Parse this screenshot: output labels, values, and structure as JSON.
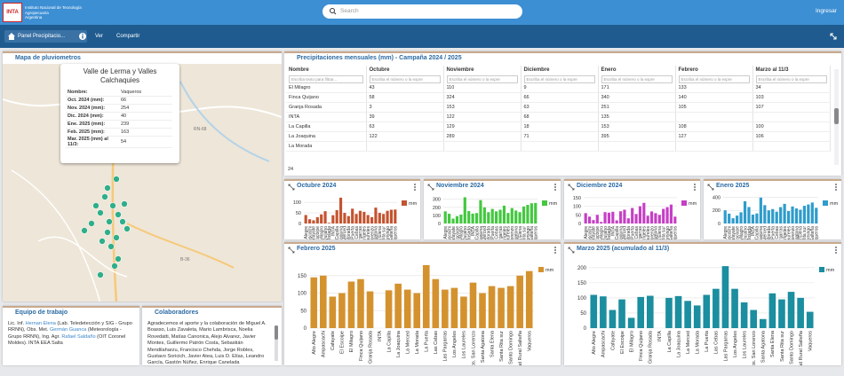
{
  "header": {
    "logo": "INTA",
    "org": "Instituto Nacional de Tecnología Agropecuaria",
    "country": "Argentina",
    "search": "Search",
    "login": "Ingresar"
  },
  "toolbar": {
    "panel": "Panel Precipitacio...",
    "view": "Ver",
    "share": "Compartir"
  },
  "map": {
    "title": "Mapa de pluviometros",
    "roads": [
      "RN-9",
      "RN-68",
      "B-36"
    ],
    "popup": {
      "title": "Valle de Lerma y Valles Calchaquies",
      "rows": [
        [
          "Nombre:",
          "Vaqueros"
        ],
        [
          "Oct. 2024 (mm):",
          "66"
        ],
        [
          "Nov. 2024 (mm):",
          "254"
        ],
        [
          "Dic. 2024 (mm):",
          "40"
        ],
        [
          "Ene. 2025 (mm):",
          "239"
        ],
        [
          "Feb. 2025 (mm):",
          "163"
        ],
        [
          "Mar. 2025 (mm) al 11/3:",
          "54"
        ]
      ]
    }
  },
  "table": {
    "title": "Precipitaciones mensuales (mm) - Campaña 2024 / 2025",
    "columns": [
      "Nombre",
      "Octubre",
      "Noviembre",
      "Diciembre",
      "Enero",
      "Febrero",
      "Marzo al 11/3"
    ],
    "filters": [
      "Escriba texto para filtrar...",
      "Escriba el número o la expre",
      "Escriba el número o la expre",
      "Escriba el número o la expre",
      "Escriba el número o la expre",
      "Escriba el número o la expre",
      "Escriba el número o la expre"
    ],
    "rows": [
      [
        "El Milagro",
        43,
        110,
        9,
        171,
        133,
        34
      ],
      [
        "Finca Quijano",
        58,
        324,
        66,
        340,
        140,
        103
      ],
      [
        "Granja Rosada",
        3,
        153,
        63,
        251,
        105,
        107
      ],
      [
        "INTA",
        39,
        122,
        68,
        135,
        null,
        null
      ],
      [
        "La Capilla",
        63,
        129,
        18,
        153,
        108,
        100
      ],
      [
        "La Joaquina",
        122,
        289,
        71,
        395,
        127,
        106
      ],
      [
        "La Morada",
        null,
        null,
        null,
        null,
        null,
        null
      ]
    ],
    "footer": "24"
  },
  "team": {
    "title": "Equipo de trabajo",
    "parts": [
      "Lic. Inf. ",
      "Hernan Elena",
      " (Lab. Teledetección y SIG - Grupo RRNN), Obs. Met. ",
      "Germán Guanca",
      " (Meteorología - Grupo RRNN), Ing. Agr. ",
      "Rafael Saldaño",
      " (OIT Coronel Moldes). INTA EEA Salta"
    ]
  },
  "collab": {
    "title": "Colaboradores",
    "text": "Agradecemos el aporte y la colaboración de Miguel A. Boasso, Luis Zavaleta, Mario Lambrisca, Noelia Rovedatti, Matías Canonica, Alejo Alvarez, Javier Montes, Guillermo Patrón Costa, Sebastián Mendilaharzu, Francisco Chehda, Jorge Robles, Gustavo Soricich, Javier Atea, Luis D. Elías, Leandro García, Gastón Núñez, Enrique Canelada"
  },
  "chart_data": [
    {
      "type": "bar",
      "title": "Octubre 2024",
      "ylim": [
        0,
        130
      ],
      "yticks": [
        0,
        50,
        100
      ],
      "grid": true,
      "categories": [
        "Alto Alegre",
        "Ampascachi",
        "Cafayate",
        "El Escoipe",
        "El Milagro",
        "Finca Quijano",
        "Granja Rosada",
        "INTA",
        "La Capilla",
        "La Joaquina",
        "La Merced",
        "La Morada",
        "La Puerta",
        "Las Cebas",
        "Las Pargarras",
        "Los Angeles",
        "Los Laureles",
        "Obs. San Lorenzo",
        "Santa Agatona",
        "Santa Elena",
        "Santa Rita sur",
        "Santo Domingo",
        "Sociedad Rural Salteña",
        "Vaqueros"
      ],
      "series": [
        {
          "name": "mm",
          "color": "#c4532f",
          "values": [
            40,
            20,
            15,
            30,
            43,
            58,
            3,
            39,
            63,
            122,
            50,
            35,
            70,
            45,
            60,
            55,
            40,
            30,
            75,
            50,
            45,
            60,
            65,
            66
          ]
        }
      ]
    },
    {
      "type": "bar",
      "title": "Noviembre 2024",
      "ylim": [
        0,
        340
      ],
      "yticks": [
        0,
        100,
        200,
        300
      ],
      "grid": true,
      "categories": [
        "Alto Alegre",
        "Ampascachi",
        "Cafayate",
        "El Escoipe",
        "El Milagro",
        "Finca Quijano",
        "Granja Rosada",
        "INTA",
        "La Capilla",
        "La Joaquina",
        "La Merced",
        "La Morada",
        "La Puerta",
        "Las Cebas",
        "Las Pargarras",
        "Los Angeles",
        "Los Laureles",
        "Obs. San Lorenzo",
        "Santa Agatona",
        "Santa Elena",
        "Santa Rita sur",
        "Santo Domingo",
        "Sociedad Rural Salteña",
        "Vaqueros"
      ],
      "series": [
        {
          "name": "mm",
          "color": "#43c83f",
          "values": [
            150,
            120,
            60,
            90,
            110,
            324,
            153,
            122,
            129,
            289,
            200,
            140,
            180,
            150,
            170,
            220,
            130,
            190,
            160,
            140,
            210,
            230,
            250,
            254
          ]
        }
      ]
    },
    {
      "type": "bar",
      "title": "Diciembre 2024",
      "ylim": [
        0,
        160
      ],
      "yticks": [
        0,
        50,
        100,
        150
      ],
      "grid": true,
      "categories": [
        "Alto Alegre",
        "Ampascachi",
        "Cafayate",
        "El Escoipe",
        "El Milagro",
        "Finca Quijano",
        "Granja Rosada",
        "INTA",
        "La Capilla",
        "La Joaquina",
        "La Merced",
        "La Morada",
        "La Puerta",
        "Las Cebas",
        "Las Pargarras",
        "Los Angeles",
        "Los Laureles",
        "Obs. San Lorenzo",
        "Santa Agatona",
        "Santa Elena",
        "Santa Rita sur",
        "Santo Domingo",
        "Sociedad Rural Salteña",
        "Vaqueros"
      ],
      "series": [
        {
          "name": "mm",
          "color": "#c63fc6",
          "values": [
            60,
            40,
            20,
            50,
            9,
            66,
            63,
            68,
            18,
            71,
            80,
            30,
            90,
            55,
            100,
            120,
            45,
            70,
            60,
            50,
            85,
            95,
            110,
            40
          ]
        }
      ]
    },
    {
      "type": "bar",
      "title": "Enero 2025",
      "ylim": [
        0,
        420
      ],
      "yticks": [
        0,
        200,
        400
      ],
      "grid": true,
      "categories": [
        "Alto Alegre",
        "Ampascachi",
        "Cafayate",
        "El Escoipe",
        "El Milagro",
        "Finca Quijano",
        "Granja Rosada",
        "INTA",
        "La Capilla",
        "La Joaquina",
        "La Merced",
        "La Morada",
        "La Puerta",
        "Las Cebas",
        "Las Pargarras",
        "Los Angeles",
        "Los Laureles",
        "Obs. San Lorenzo",
        "Santa Agatona",
        "Santa Elena",
        "Santa Rita sur",
        "Santo Domingo",
        "Sociedad Rural Salteña",
        "Vaqueros"
      ],
      "series": [
        {
          "name": "mm",
          "color": "#2f9ccc",
          "values": [
            200,
            150,
            80,
            120,
            171,
            340,
            251,
            135,
            153,
            395,
            280,
            200,
            220,
            180,
            250,
            300,
            190,
            260,
            230,
            210,
            270,
            290,
            320,
            239
          ]
        }
      ]
    },
    {
      "type": "bar",
      "title": "Febrero 2025",
      "ylim": [
        0,
        190
      ],
      "yticks": [
        0,
        50,
        100,
        150
      ],
      "grid": true,
      "categories": [
        "Alto Alegre",
        "Ampascachi",
        "Cafayate",
        "El Escoipe",
        "El Milagro",
        "Finca Quijano",
        "Granja Rosada",
        "INTA",
        "La Capilla",
        "La Joaquina",
        "La Merced",
        "La Morada",
        "La Puerta",
        "Las Cebas",
        "Las Pargarras",
        "Los Angeles",
        "Los Laureles",
        "Obs. San Lorenzo",
        "Santa Agatona",
        "Santa Elena",
        "Santa Rita sur",
        "Santo Domingo",
        "Sociedad Rural Salteña",
        "Vaqueros"
      ],
      "series": [
        {
          "name": "mm",
          "color": "#d4922f",
          "values": [
            145,
            150,
            90,
            100,
            133,
            140,
            105,
            null,
            108,
            127,
            110,
            100,
            180,
            140,
            110,
            115,
            90,
            130,
            100,
            120,
            115,
            120,
            150,
            163
          ]
        }
      ]
    },
    {
      "type": "bar",
      "title": "Marzo 2025 (acumulado al 11/3)",
      "ylim": [
        0,
        220
      ],
      "yticks": [
        0,
        50,
        100,
        150,
        200
      ],
      "grid": true,
      "categories": [
        "Alto Alegre",
        "Ampascachi",
        "Cafayate",
        "El Escoipe",
        "El Milagro",
        "Finca Quijano",
        "Granja Rosada",
        "INTA",
        "La Capilla",
        "La Joaquina",
        "La Merced",
        "La Morada",
        "La Puerta",
        "Las Cebas",
        "Las Pargarras",
        "Los Angeles",
        "Los Laureles",
        "Obs. San Lorenzo",
        "Santa Agatona",
        "Santa Elena",
        "Santa Rita sur",
        "Santo Domingo",
        "Sociedad Rural Salteña",
        "Vaqueros"
      ],
      "series": [
        {
          "name": "mm",
          "color": "#1b8e9f",
          "values": [
            110,
            105,
            60,
            95,
            34,
            103,
            107,
            null,
            100,
            106,
            90,
            75,
            110,
            130,
            205,
            130,
            85,
            60,
            30,
            115,
            95,
            120,
            100,
            54
          ]
        }
      ]
    }
  ]
}
